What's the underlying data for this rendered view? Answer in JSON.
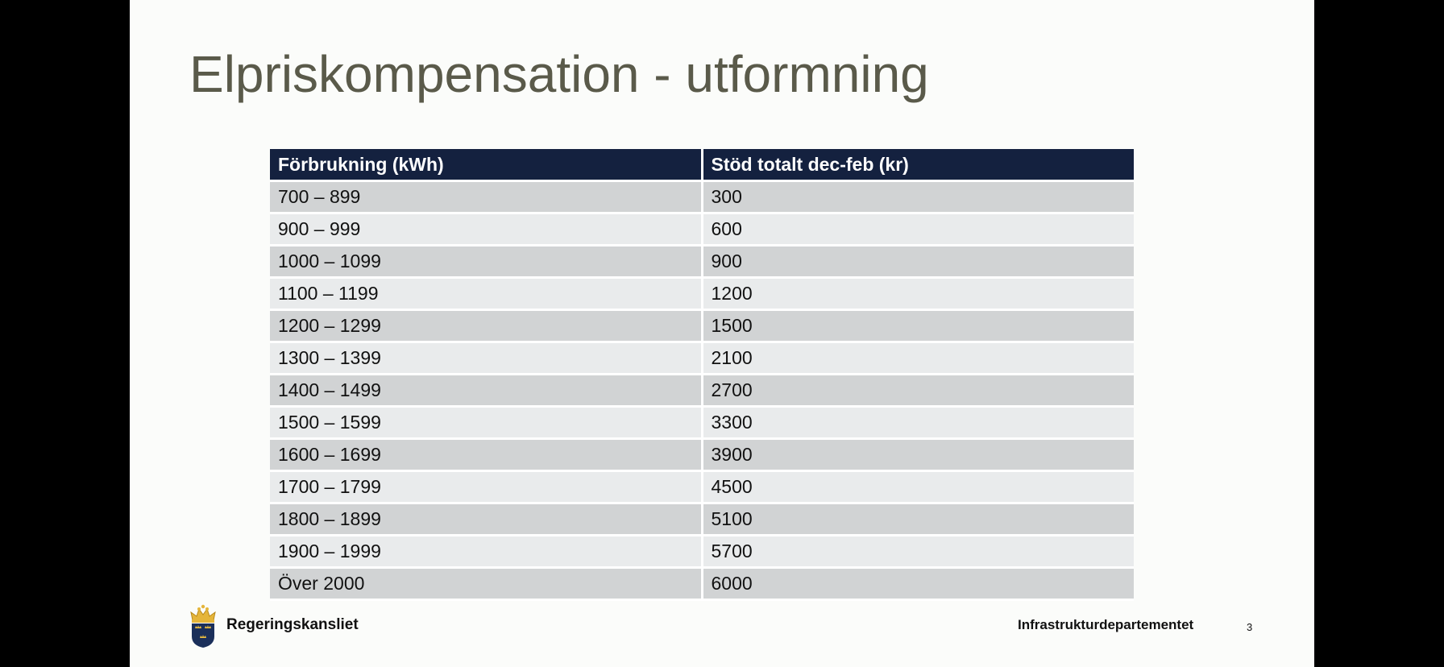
{
  "slide": {
    "title": "Elpriskompensation - utformning",
    "table": {
      "headers": [
        "Förbrukning (kWh)",
        "Stöd totalt dec-feb (kr)"
      ],
      "rows": [
        [
          "700 – 899",
          "300"
        ],
        [
          "900 – 999",
          "600"
        ],
        [
          "1000 – 1099",
          "900"
        ],
        [
          "1100 – 1199",
          "1200"
        ],
        [
          "1200 – 1299",
          "1500"
        ],
        [
          "1300 – 1399",
          "2100"
        ],
        [
          "1400 – 1499",
          "2700"
        ],
        [
          "1500 – 1599",
          "3300"
        ],
        [
          "1600 – 1699",
          "3900"
        ],
        [
          "1700 – 1799",
          "4500"
        ],
        [
          "1800 – 1899",
          "5100"
        ],
        [
          "1900 – 1999",
          "5700"
        ],
        [
          "Över 2000",
          "6000"
        ]
      ]
    },
    "footer": {
      "logo_icon": "swedish-government-crest-icon",
      "organization": "Regeringskansliet",
      "department": "Infrastrukturdepartementet",
      "page_number": "3"
    }
  },
  "colors": {
    "title_text": "#5a5a4a",
    "table_header_bg": "#14213f",
    "row_dark": "#d1d3d4",
    "row_light": "#e9ebec",
    "slide_bg": "#fbfcfa"
  }
}
